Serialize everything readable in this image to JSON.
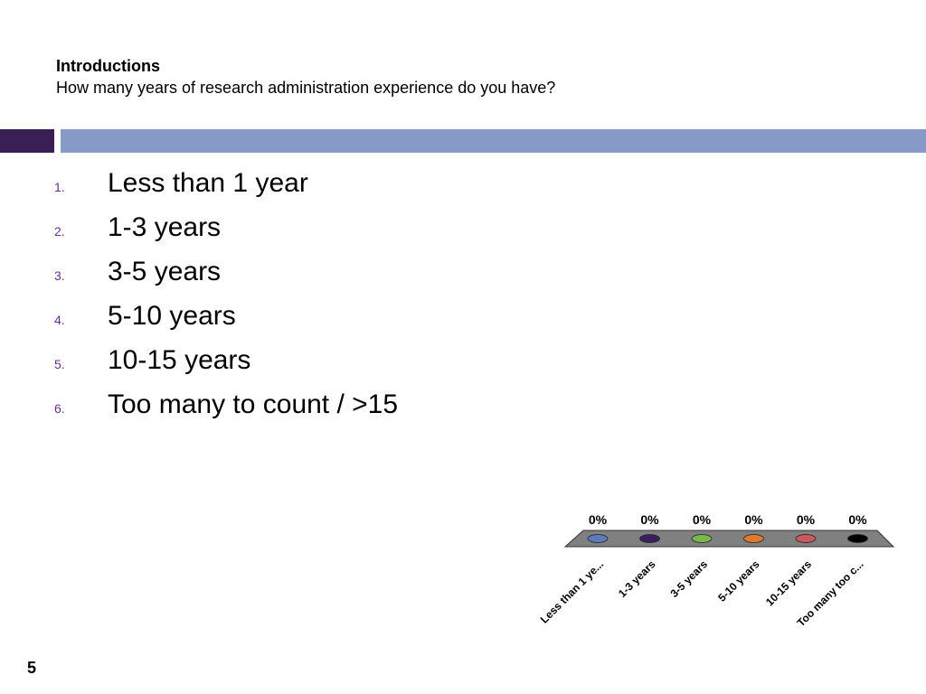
{
  "slide": {
    "title": "Introductions",
    "question": "How many years of research administration experience do you have?",
    "page_number": "5"
  },
  "options": [
    {
      "num": "1.",
      "label": "Less than 1 year"
    },
    {
      "num": "2.",
      "label": "1-3 years"
    },
    {
      "num": "3.",
      "label": "3-5 years"
    },
    {
      "num": "4.",
      "label": "5-10 years"
    },
    {
      "num": "5.",
      "label": "10-15 years"
    },
    {
      "num": "6.",
      "label": "Too many to count / >15"
    }
  ],
  "colors": {
    "accent_dark": "#3a1f54",
    "accent_band": "#8799c7",
    "list_number": "#6b2c91",
    "chart_floor": "#808080"
  },
  "chart_data": {
    "type": "bar",
    "categories": [
      "Less than 1 ye...",
      "1-3 years",
      "3-5 years",
      "5-10 years",
      "10-15 years",
      "Too many too c..."
    ],
    "values": [
      0,
      0,
      0,
      0,
      0,
      0
    ],
    "value_labels": [
      "0%",
      "0%",
      "0%",
      "0%",
      "0%",
      "0%"
    ],
    "series_colors": [
      "#5b7bbf",
      "#3b1e5c",
      "#79b84f",
      "#e07b2e",
      "#c9595e",
      "#000000"
    ],
    "ylim": [
      0,
      100
    ],
    "grid": false
  }
}
